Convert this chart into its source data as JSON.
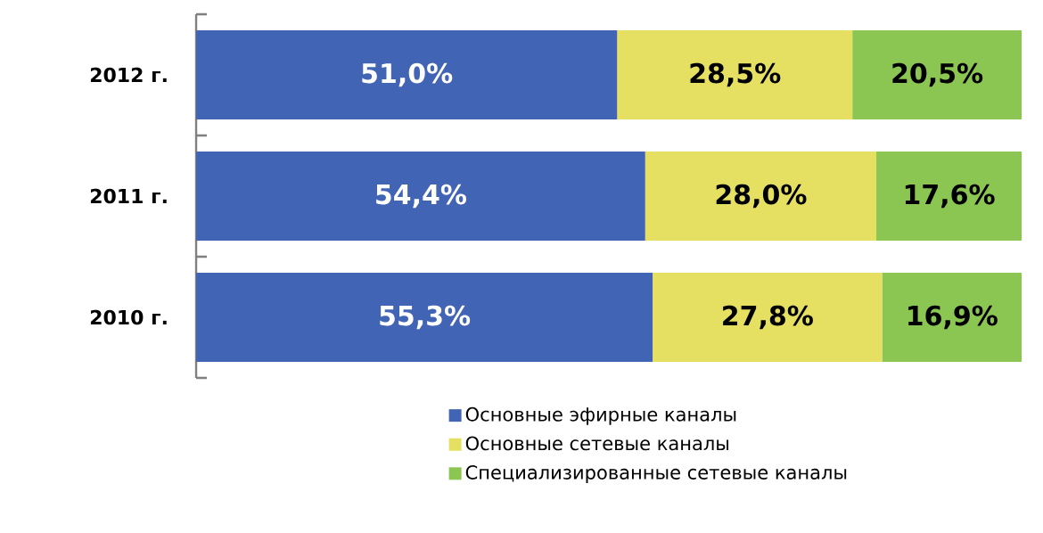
{
  "chart_data": {
    "type": "bar",
    "orientation": "horizontal",
    "stacked": true,
    "legend": "bottom",
    "categories": [
      "2012 г.",
      "2011 г.",
      "2010 г."
    ],
    "series": [
      {
        "name": "Основные эфирные каналы",
        "color": "#4264b4",
        "values": [
          51.0,
          54.4,
          55.3
        ],
        "value_labels": [
          "51,0%",
          "54,4%",
          "55,3%"
        ]
      },
      {
        "name": "Основные сетевые каналы",
        "color": "#e6e062",
        "values": [
          28.5,
          28.0,
          27.8
        ],
        "value_labels": [
          "28,5%",
          "28,0%",
          "27,8%"
        ]
      },
      {
        "name": "Специализированные сетевые каналы",
        "color": "#8cc652",
        "values": [
          20.5,
          17.6,
          16.9
        ],
        "value_labels": [
          "20,5%",
          "17,6%",
          "16,9%"
        ]
      }
    ]
  }
}
